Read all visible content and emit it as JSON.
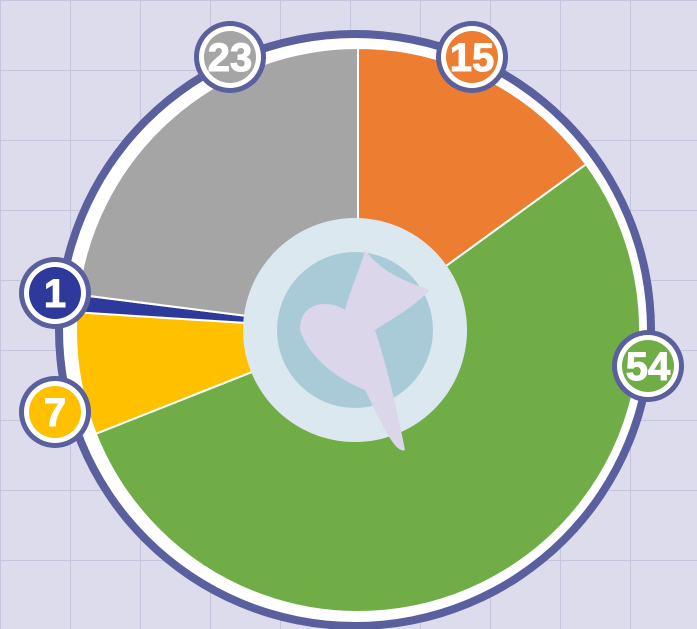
{
  "chart_data": {
    "type": "pie",
    "values": [
      15,
      54,
      7,
      1,
      23
    ],
    "colors": [
      "#ed7d31",
      "#70ad47",
      "#ffc000",
      "#2e3a9b",
      "#a5a5a5"
    ]
  }
}
